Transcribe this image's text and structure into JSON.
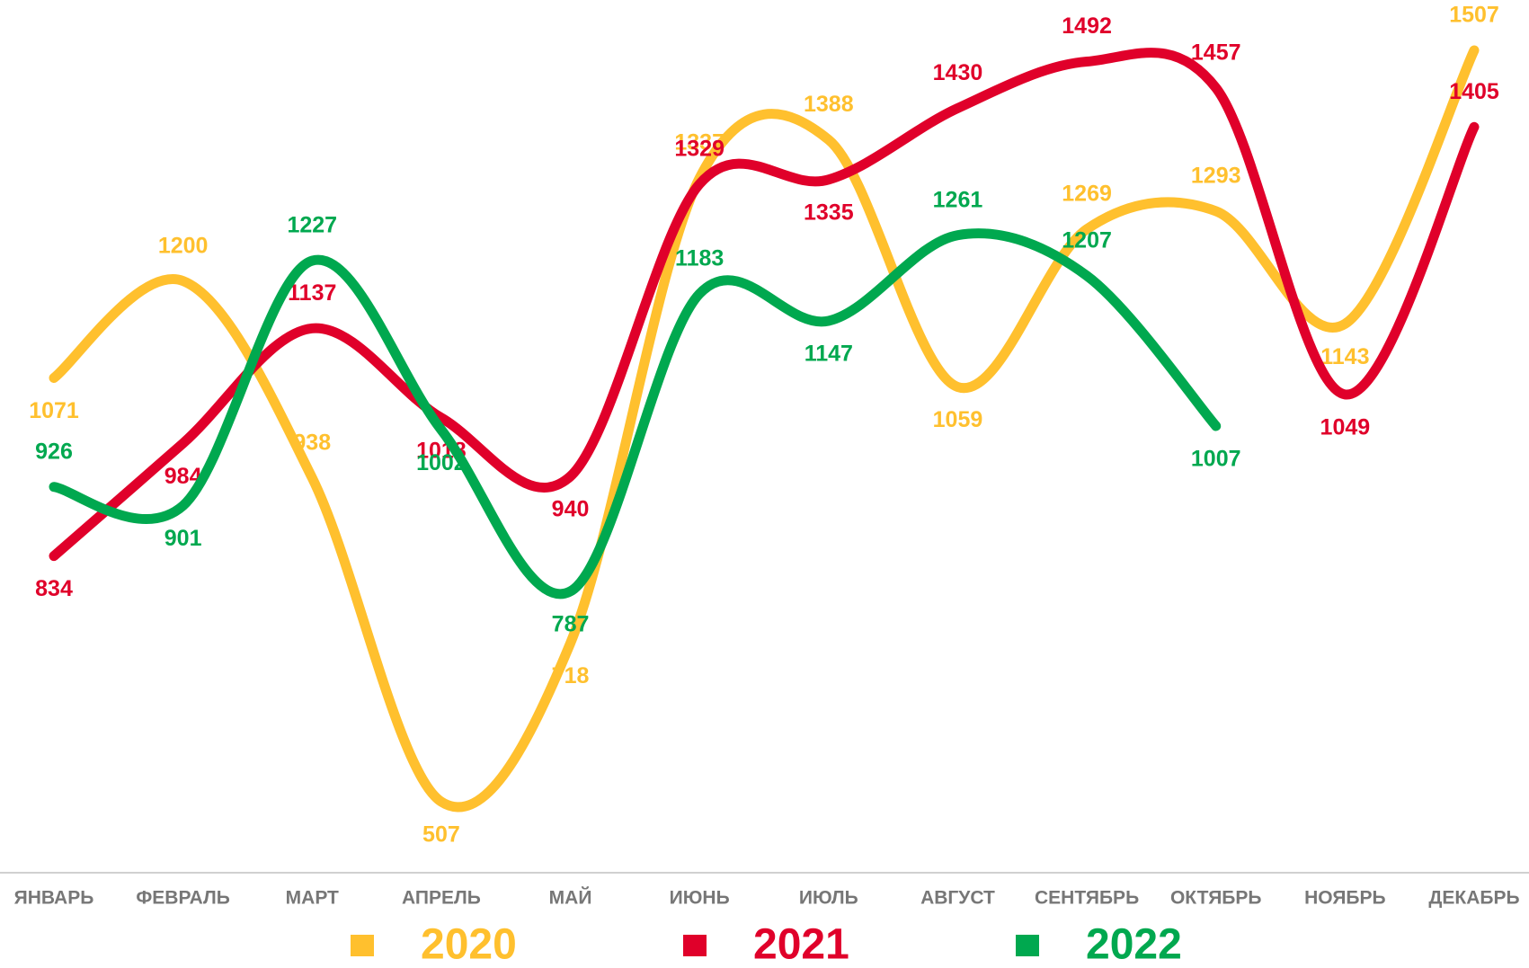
{
  "chart_data": {
    "type": "line",
    "categories": [
      "ЯНВАРЬ",
      "ФЕВРАЛЬ",
      "МАРТ",
      "АПРЕЛЬ",
      "МАЙ",
      "ИЮНЬ",
      "ИЮЛЬ",
      "АВГУСТ",
      "СЕНТЯБРЬ",
      "ОКТЯБРЬ",
      "НОЯБРЬ",
      "ДЕКАБРЬ"
    ],
    "series": [
      {
        "name": "2020",
        "color": "#FFC02E",
        "values": [
          1071,
          1200,
          938,
          507,
          718,
          1337,
          1388,
          1059,
          1269,
          1293,
          1143,
          1507
        ]
      },
      {
        "name": "2021",
        "color": "#E0002A",
        "values": [
          834,
          984,
          1137,
          1018,
          940,
          1329,
          1335,
          1430,
          1492,
          1457,
          1049,
          1405
        ]
      },
      {
        "name": "2022",
        "color": "#00A84F",
        "values": [
          926,
          901,
          1227,
          1002,
          787,
          1183,
          1147,
          1261,
          1207,
          1007,
          null,
          null
        ]
      }
    ],
    "smooth": true
  }
}
